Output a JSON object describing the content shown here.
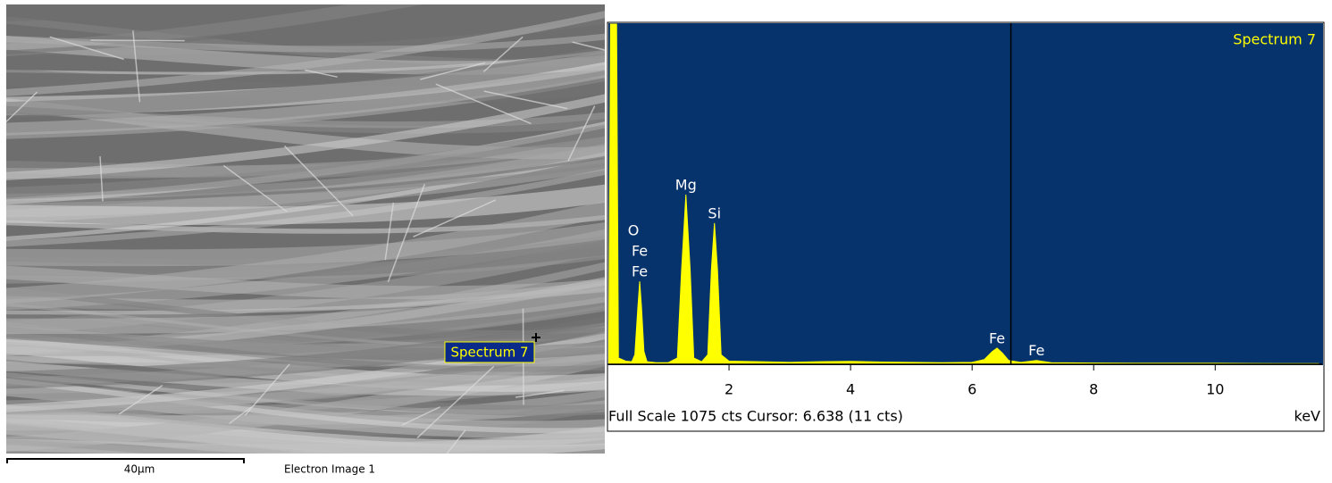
{
  "image": {
    "label": "Spectrum 7",
    "scale_label": "40µm",
    "caption": "Electron Image 1"
  },
  "chart_data": {
    "type": "area",
    "title": "Spectrum 7",
    "color": "#ffff00",
    "background": "#06336b",
    "x_label": "keV",
    "footer": "Full Scale 1075 cts Cursor: 6.638  (11 cts)",
    "cursor": 6.638,
    "xlim": [
      0,
      11.76
    ],
    "ylim": [
      0,
      1075
    ],
    "xticks": [
      2,
      4,
      6,
      8,
      10
    ],
    "x": [
      0.02,
      0.05,
      0.15,
      0.18,
      0.3,
      0.4,
      0.45,
      0.5,
      0.53,
      0.56,
      0.6,
      0.65,
      0.8,
      1.0,
      1.15,
      1.22,
      1.29,
      1.36,
      1.42,
      1.55,
      1.65,
      1.71,
      1.76,
      1.81,
      1.87,
      2.0,
      2.5,
      3.0,
      3.5,
      4.0,
      4.5,
      5.0,
      5.5,
      6.0,
      6.2,
      6.33,
      6.41,
      6.5,
      6.6,
      6.8,
      7.06,
      7.3,
      8,
      9,
      10,
      11,
      11.7
    ],
    "values": [
      0,
      1075,
      1075,
      20,
      10,
      8,
      30,
      180,
      262,
      180,
      40,
      8,
      5,
      5,
      20,
      300,
      536,
      300,
      20,
      8,
      30,
      300,
      446,
      300,
      30,
      10,
      8,
      6,
      8,
      9,
      7,
      6,
      5,
      6,
      15,
      40,
      51,
      35,
      12,
      6,
      12,
      5,
      4,
      3,
      3,
      2,
      2
    ],
    "annotations": [
      {
        "lines": [
          "O",
          "Fe",
          "Fe"
        ],
        "x": 0.53
      },
      {
        "lines": [
          "Mg"
        ],
        "x": 1.29
      },
      {
        "lines": [
          "Si"
        ],
        "x": 1.76
      },
      {
        "lines": [
          "Fe"
        ],
        "x": 6.41
      },
      {
        "lines": [
          "Fe"
        ],
        "x": 7.06
      }
    ]
  }
}
